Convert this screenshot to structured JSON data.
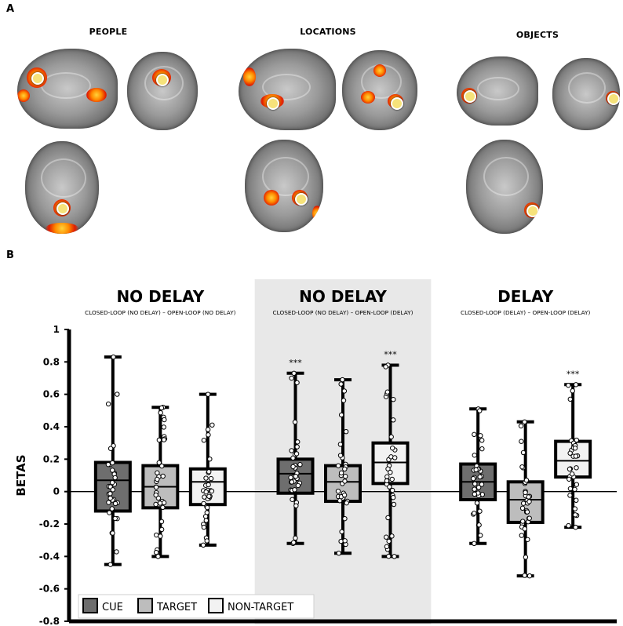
{
  "panel_a": {
    "letter": "A",
    "titles": [
      "PEOPLE",
      "LOCATIONS",
      "OBJECTS"
    ]
  },
  "panel_b": {
    "letter": "B"
  },
  "chart_data": {
    "type": "boxplot",
    "ylabel": "BETAS",
    "ylim": [
      -0.8,
      1
    ],
    "yticks": [
      -0.8,
      -0.6,
      -0.4,
      -0.2,
      0,
      0.2,
      0.4,
      0.6,
      0.8,
      1
    ],
    "ytick_labels": [
      "-0.8",
      "-0.6",
      "-0.4",
      "-0.2",
      "0",
      "0.2",
      "0.4",
      "0.6",
      "0.8",
      "1"
    ],
    "legend": {
      "placement": "bottom-left",
      "entries": [
        {
          "name": "CUE",
          "color": "#6e6e6e"
        },
        {
          "name": "TARGET",
          "color": "#bdbdbd"
        },
        {
          "name": "NON-TARGET",
          "color": "#f2f2f2"
        }
      ]
    },
    "groups": [
      {
        "title": "NO DELAY",
        "subtitle": "CLOSED-LOOP (NO DELAY) – OPEN-LOOP (NO DELAY)",
        "shaded": false,
        "boxes": [
          {
            "category": "CUE",
            "min": -0.45,
            "q1": -0.12,
            "median": 0.07,
            "q3": 0.18,
            "max": 0.83,
            "sig": ""
          },
          {
            "category": "TARGET",
            "min": -0.4,
            "q1": -0.1,
            "median": 0.03,
            "q3": 0.16,
            "max": 0.52,
            "sig": ""
          },
          {
            "category": "NON-TARGET",
            "min": -0.33,
            "q1": -0.08,
            "median": 0.06,
            "q3": 0.14,
            "max": 0.6,
            "sig": ""
          }
        ]
      },
      {
        "title": "NO DELAY",
        "subtitle": "CLOSED-LOOP (NO DELAY) – OPEN-LOOP (DELAY)",
        "shaded": true,
        "boxes": [
          {
            "category": "CUE",
            "min": -0.32,
            "q1": -0.01,
            "median": 0.11,
            "q3": 0.2,
            "max": 0.73,
            "sig": "***"
          },
          {
            "category": "TARGET",
            "min": -0.38,
            "q1": -0.06,
            "median": 0.06,
            "q3": 0.16,
            "max": 0.69,
            "sig": ""
          },
          {
            "category": "NON-TARGET",
            "min": -0.4,
            "q1": 0.05,
            "median": 0.18,
            "q3": 0.3,
            "max": 0.78,
            "sig": "***"
          }
        ]
      },
      {
        "title": "DELAY",
        "subtitle": "CLOSED-LOOP (DELAY) – OPEN-LOOP (DELAY)",
        "shaded": false,
        "boxes": [
          {
            "category": "CUE",
            "min": -0.32,
            "q1": -0.05,
            "median": 0.06,
            "q3": 0.17,
            "max": 0.51,
            "sig": ""
          },
          {
            "category": "TARGET",
            "min": -0.52,
            "q1": -0.19,
            "median": -0.05,
            "q3": 0.06,
            "max": 0.43,
            "sig": ""
          },
          {
            "category": "NON-TARGET",
            "min": -0.22,
            "q1": 0.09,
            "median": 0.19,
            "q3": 0.31,
            "max": 0.66,
            "sig": "***"
          }
        ]
      }
    ]
  }
}
